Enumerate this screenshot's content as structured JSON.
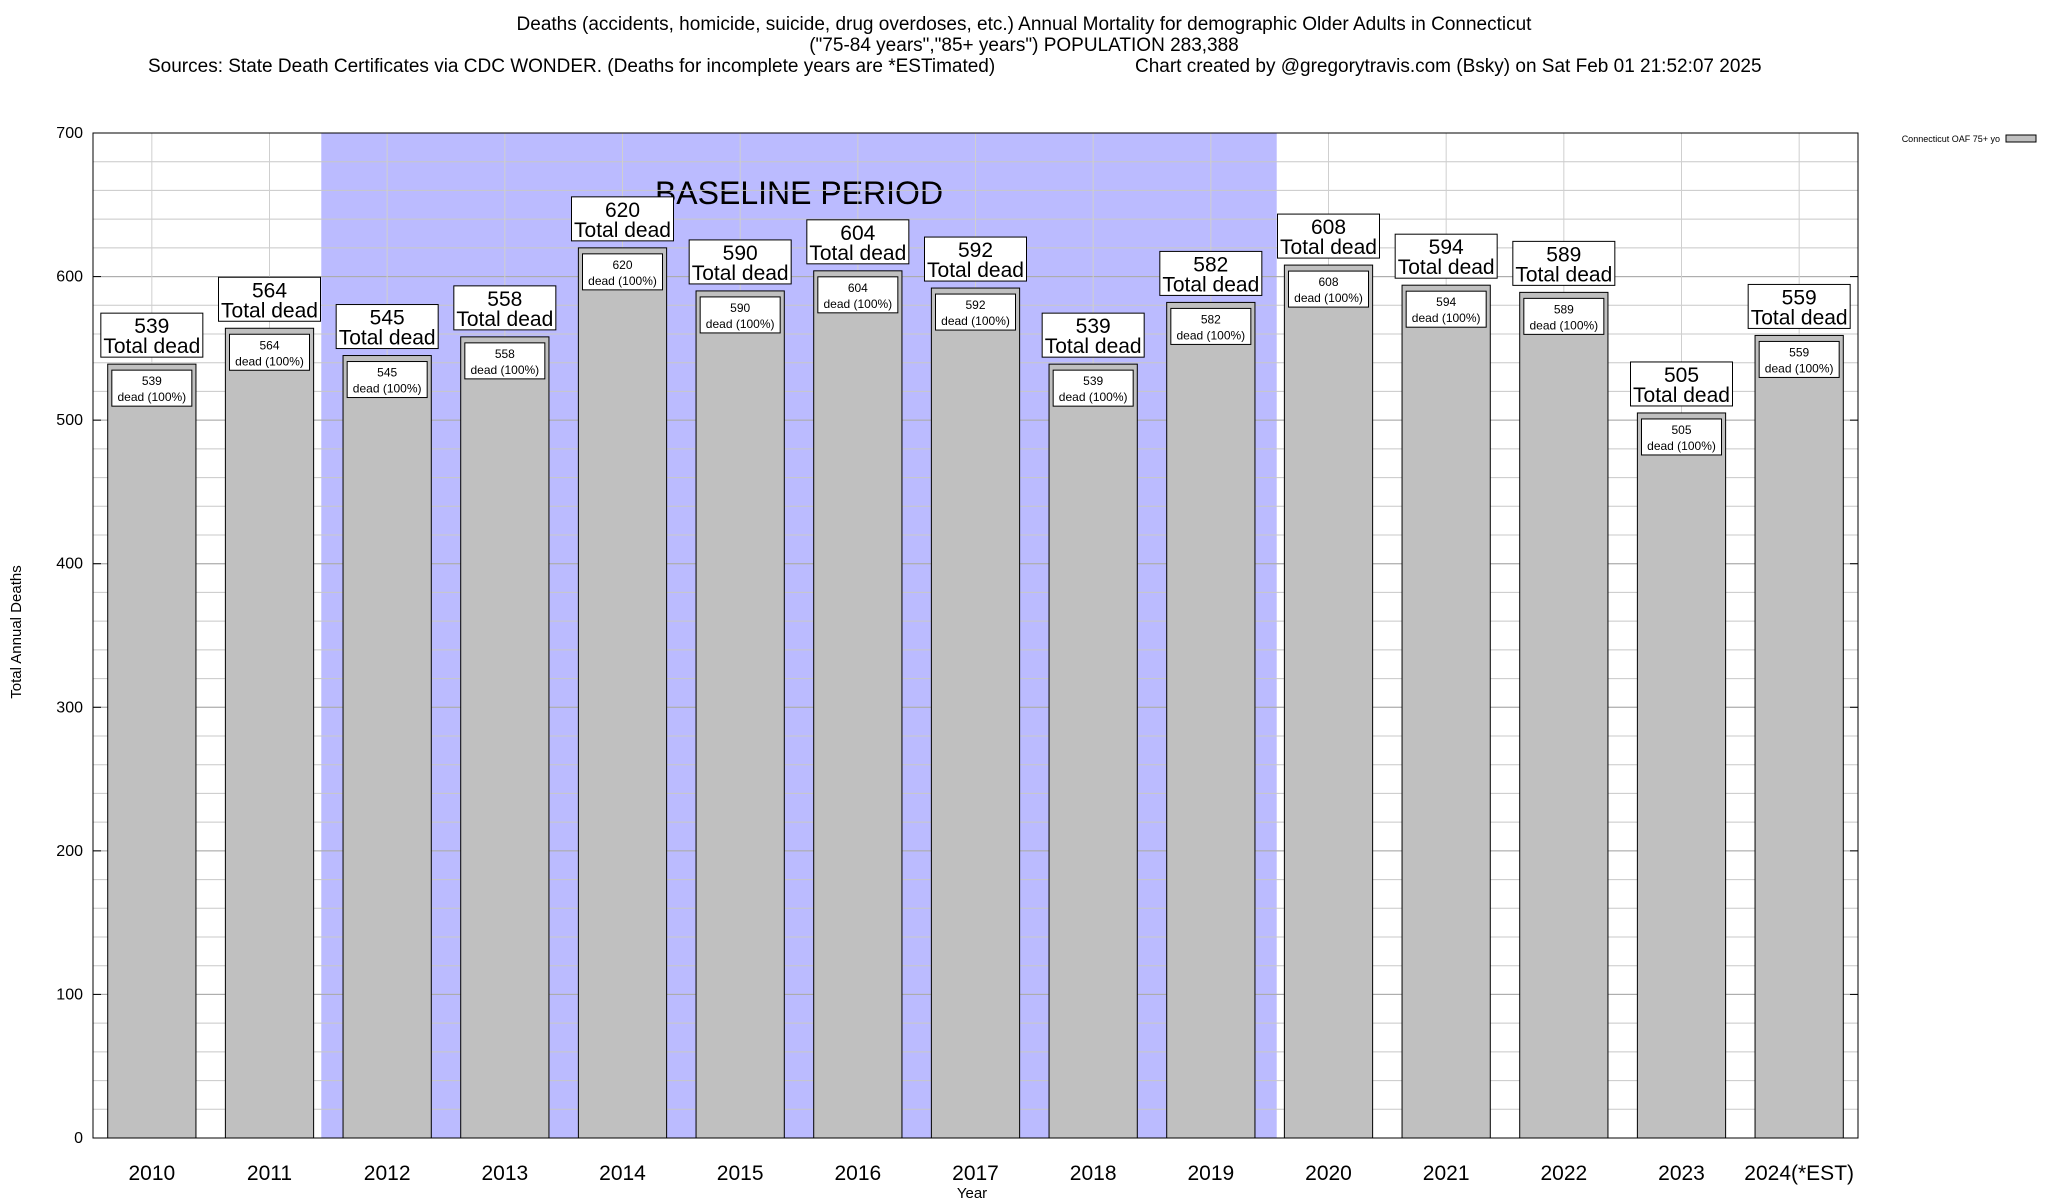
{
  "header": {
    "title_line1": "Deaths (accidents, homicide, suicide, drug overdoses, etc.) Annual Mortality for demographic Older Adults in Connecticut",
    "title_line2": "(\"75-84 years\",\"85+ years\") POPULATION 283,388",
    "sources": "Sources: State Death Certificates via CDC WONDER. (Deaths for incomplete years are *ESTimated)",
    "credit": "Chart created by @gregorytravis.com (Bsky) on Sat Feb 01 21:52:07 2025"
  },
  "chart_data": {
    "type": "bar",
    "categories": [
      "2010",
      "2011",
      "2012",
      "2013",
      "2014",
      "2015",
      "2016",
      "2017",
      "2018",
      "2019",
      "2020",
      "2021",
      "2022",
      "2023",
      "2024(*EST)"
    ],
    "series": [
      {
        "name": "Connecticut OAF 75+ yo",
        "values": [
          539,
          564,
          545,
          558,
          620,
          590,
          604,
          592,
          539,
          582,
          608,
          594,
          589,
          505,
          559
        ],
        "color": "#c0c0c0"
      }
    ],
    "data_label_total_suffix": "Total dead",
    "data_label_inner_suffix": "dead (100%)",
    "xlabel": "Year",
    "ylabel": "Total Annual Deaths",
    "ylim": [
      0,
      700
    ],
    "yticks": [
      0,
      100,
      200,
      300,
      400,
      500,
      600,
      700
    ],
    "minor_step": 20,
    "grid": true,
    "legend_position": "top-right",
    "baseline": {
      "label": "BASELINE PERIOD",
      "start_category": "2012",
      "end_category": "2019",
      "color": "#bbbbff"
    }
  }
}
